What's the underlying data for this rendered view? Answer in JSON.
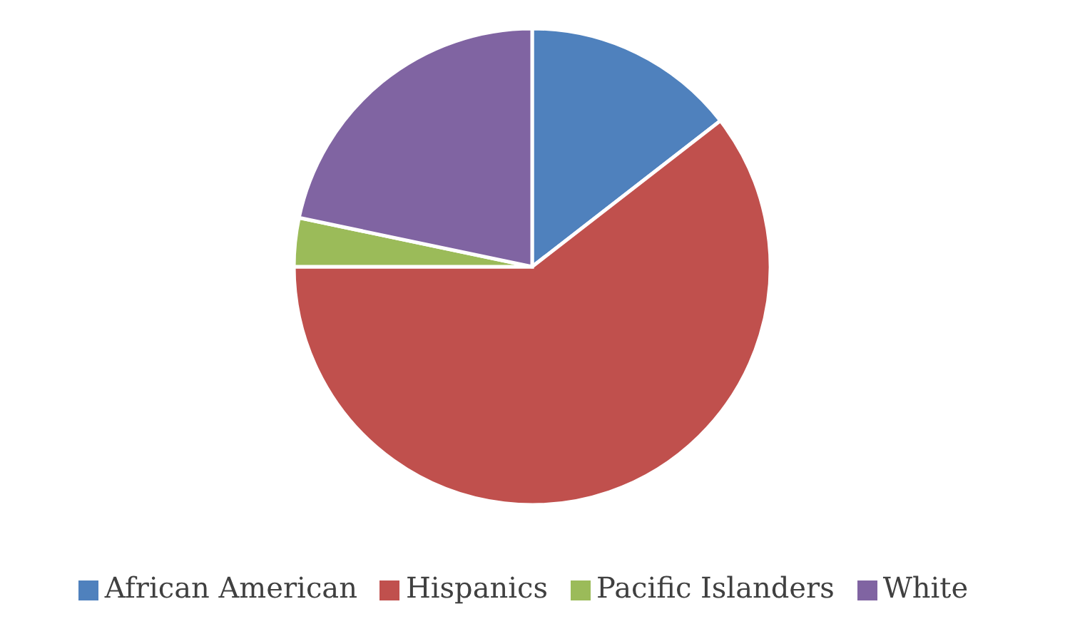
{
  "chart_data": {
    "type": "pie",
    "categories": [
      "African American",
      "Hispanics",
      "Pacific Islanders",
      "White"
    ],
    "values": [
      14.5,
      60.5,
      3.3,
      21.7
    ],
    "colors": [
      "#4f81bd",
      "#c0504d",
      "#9bbb59",
      "#8064a2"
    ],
    "legend": "bottom"
  }
}
